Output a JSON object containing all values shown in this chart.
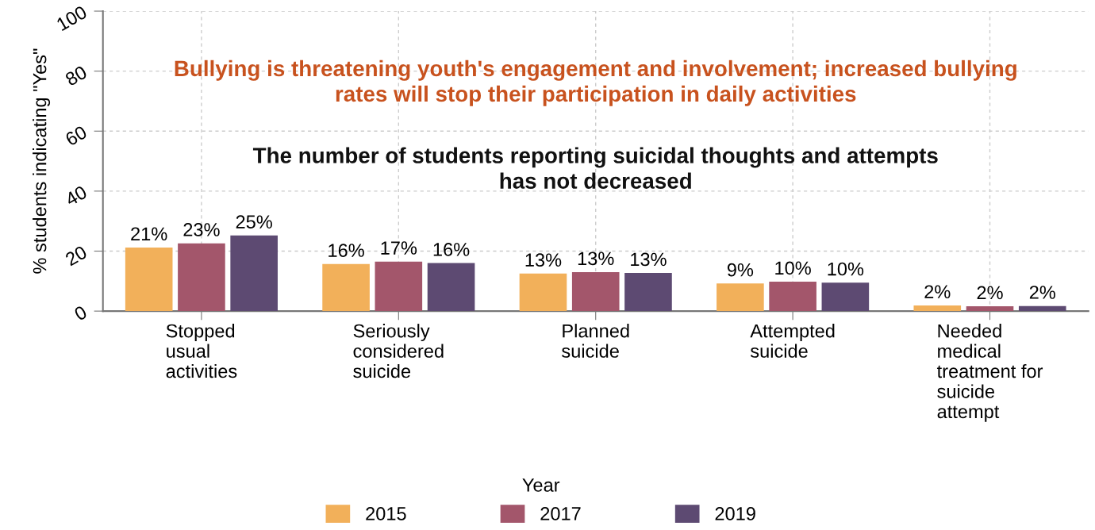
{
  "chart_data": {
    "type": "bar",
    "categories": [
      "Stopped\nusual\nactivities",
      "Seriously\nconsidered\nsuicide",
      "Planned\nsuicide",
      "Attempted\nsuicide",
      "Needed\nmedical\ntreatment for\nsuicide\nattempt"
    ],
    "series": [
      {
        "name": "2015",
        "color": "#f2b05a",
        "values": [
          21.2,
          15.7,
          12.5,
          9.2,
          1.9
        ],
        "value_labels": [
          "21%",
          "16%",
          "13%",
          "9%",
          "2%"
        ]
      },
      {
        "name": "2017",
        "color": "#a3566b",
        "values": [
          22.6,
          16.5,
          13.0,
          9.8,
          1.6
        ],
        "value_labels": [
          "23%",
          "17%",
          "13%",
          "10%",
          "2%"
        ]
      },
      {
        "name": "2019",
        "color": "#5d4a72",
        "values": [
          25.2,
          16.0,
          12.7,
          9.5,
          1.7
        ],
        "value_labels": [
          "25%",
          "16%",
          "13%",
          "10%",
          "2%"
        ]
      }
    ],
    "ylabel": "% students indicating \"Yes\"",
    "legend_title": "Year",
    "ylim": [
      0,
      100
    ],
    "yticks": [
      0,
      20,
      40,
      60,
      80,
      100
    ],
    "grid": true,
    "legend": "bottom",
    "annotations": [
      "Bullying is threatening youth's engagement and involvement; increased bullying\nrates will stop their participation in daily activities",
      "The number of students reporting suicidal thoughts and attempts\nhas not decreased"
    ]
  }
}
